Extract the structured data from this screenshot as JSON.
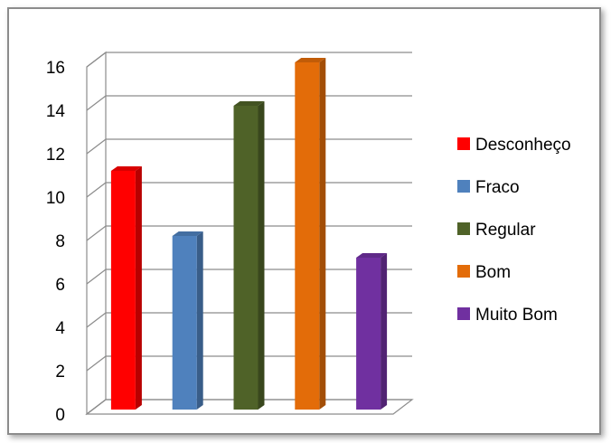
{
  "chart_data": {
    "type": "bar",
    "title": "",
    "xlabel": "",
    "ylabel": "",
    "ylim": [
      0,
      16
    ],
    "yticks": [
      0,
      2,
      4,
      6,
      8,
      10,
      12,
      14,
      16
    ],
    "yticks_text": [
      "0",
      "2",
      "4",
      "6",
      "8",
      "10",
      "12",
      "14",
      "16"
    ],
    "grid": true,
    "three_d": true,
    "legend_position": "right",
    "series": [
      {
        "name": "Desconheço",
        "value": 11,
        "color": "#ff0000"
      },
      {
        "name": "Fraco",
        "value": 8,
        "color": "#4f81bd"
      },
      {
        "name": "Regular",
        "value": 14,
        "color": "#4f6228"
      },
      {
        "name": "Bom",
        "value": 16,
        "color": "#e36c09"
      },
      {
        "name": "Muito Bom",
        "value": 7,
        "color": "#7030a0"
      }
    ]
  }
}
